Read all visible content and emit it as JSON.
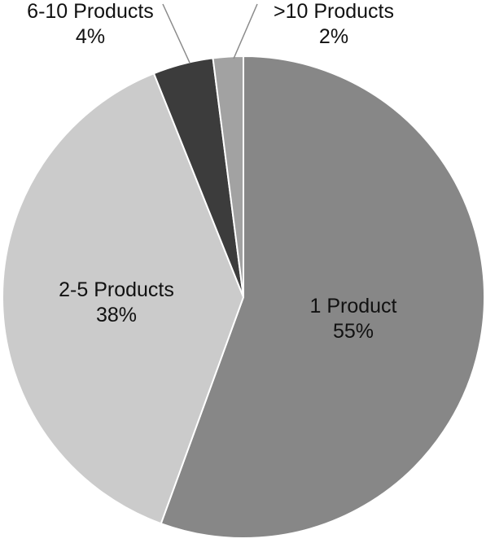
{
  "chart_data": {
    "type": "pie",
    "start_angle_deg": 0,
    "direction": "clockwise",
    "slices": [
      {
        "label": "1 Product",
        "pct_label": "55%",
        "value": 55,
        "color": "#878787",
        "label_placement": "inside"
      },
      {
        "label": "2-5 Products",
        "pct_label": "38%",
        "value": 38,
        "color": "#cbcbcb",
        "label_placement": "inside"
      },
      {
        "label": "6-10 Products",
        "pct_label": "4%",
        "value": 4,
        "color": "#3c3c3c",
        "label_placement": "outside"
      },
      {
        "label": ">10 Products",
        "pct_label": "2%",
        "value": 2,
        "color": "#a2a2a2",
        "label_placement": "outside"
      }
    ],
    "legend": "none"
  }
}
